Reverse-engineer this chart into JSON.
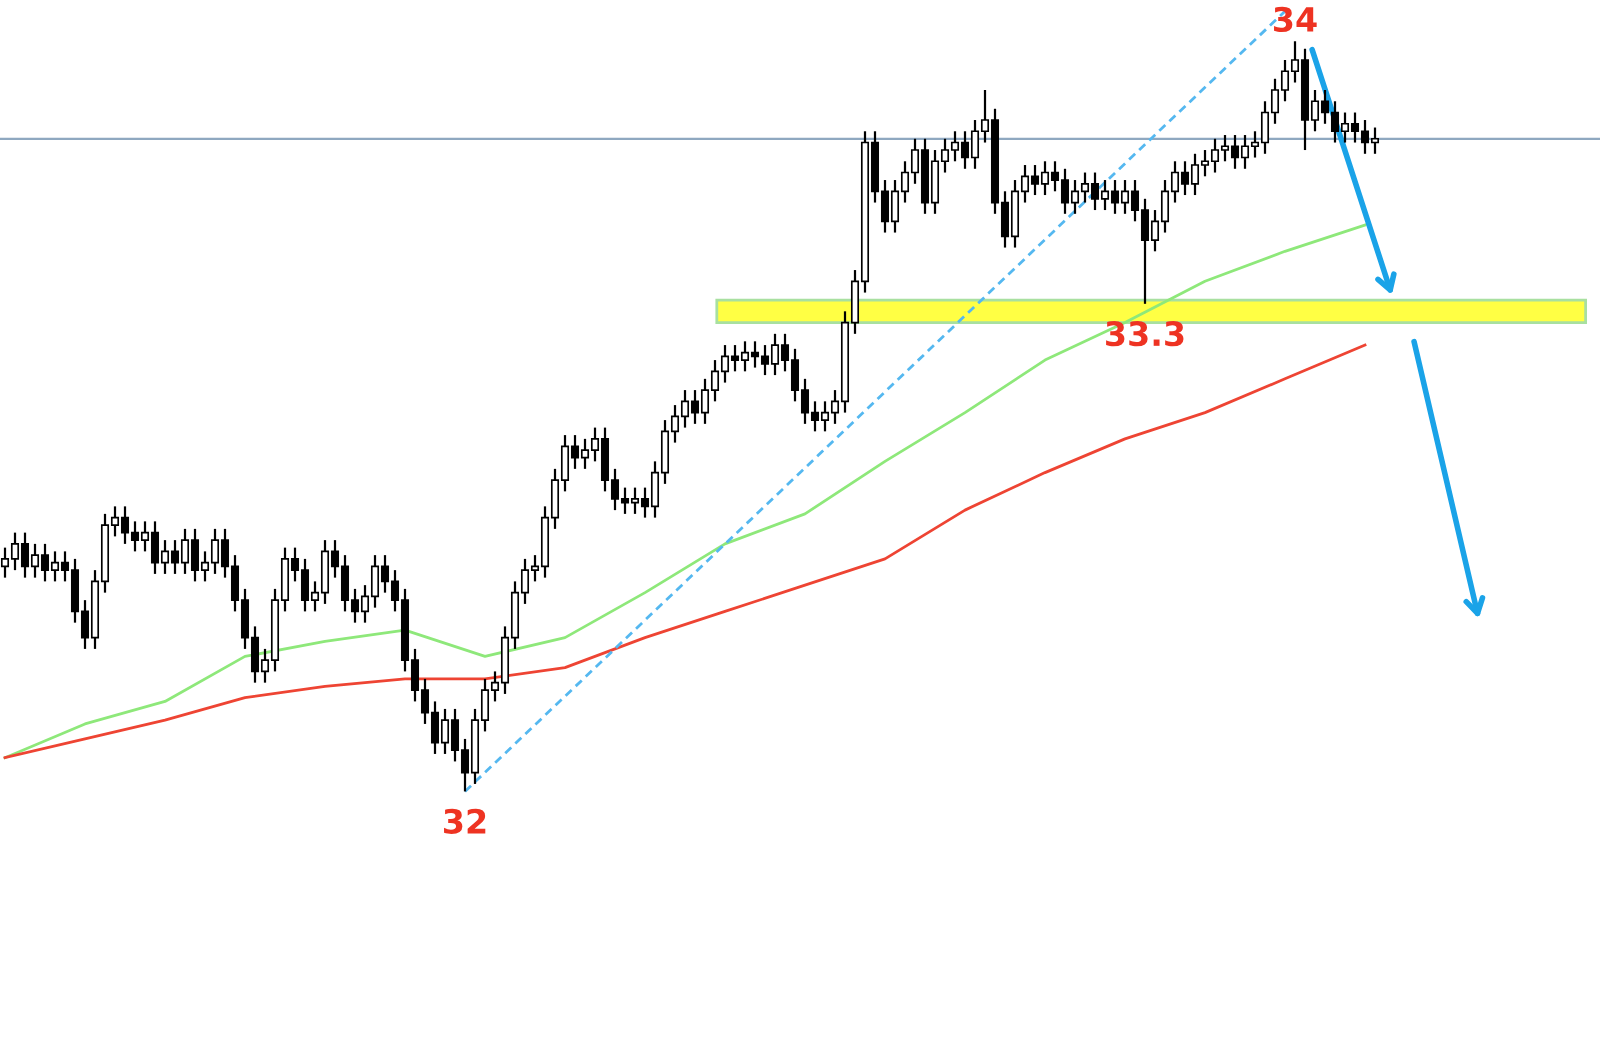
{
  "chart_data": {
    "type": "candlestick",
    "categories": [
      null,
      null,
      null,
      null,
      null,
      null,
      null,
      null,
      null,
      null,
      null,
      null,
      null,
      null,
      null,
      null,
      null,
      null,
      null,
      null,
      null,
      null,
      null,
      null,
      null,
      null,
      null,
      null,
      null,
      null,
      null,
      null,
      null,
      null,
      null,
      null,
      null,
      null,
      null,
      null,
      null,
      null,
      null,
      null,
      null,
      null,
      null,
      null,
      null,
      null,
      null,
      null,
      null,
      null,
      null,
      null,
      null,
      null,
      null,
      null,
      null,
      null,
      null,
      null,
      null,
      null,
      null,
      null,
      null,
      null,
      null,
      null,
      null,
      null,
      null,
      null,
      null,
      null,
      null,
      null,
      null,
      null,
      null,
      null,
      null,
      null,
      null,
      null,
      null,
      null,
      null,
      null,
      null,
      null,
      null,
      null,
      null,
      null,
      null,
      null,
      null,
      null,
      null,
      null,
      null,
      null,
      null,
      null,
      null,
      null,
      null,
      null,
      null,
      null,
      null,
      null,
      null,
      null,
      null,
      null,
      null,
      null,
      null,
      null,
      null,
      null,
      null,
      null,
      null,
      null,
      null,
      null,
      null,
      null,
      null,
      null,
      null,
      null,
      null,
      null,
      null,
      null,
      null,
      null,
      null,
      null,
      null,
      null,
      null,
      null,
      null,
      null,
      null,
      null,
      null,
      null,
      null,
      null,
      null,
      null
    ],
    "ohlc": [
      [
        32.6,
        32.65,
        32.57,
        32.62
      ],
      [
        32.62,
        32.69,
        32.59,
        32.66
      ],
      [
        32.66,
        32.69,
        32.57,
        32.6
      ],
      [
        32.6,
        32.66,
        32.57,
        32.63
      ],
      [
        32.63,
        32.66,
        32.56,
        32.59
      ],
      [
        32.59,
        32.64,
        32.56,
        32.61
      ],
      [
        32.61,
        32.64,
        32.56,
        32.59
      ],
      [
        32.59,
        32.62,
        32.45,
        32.48
      ],
      [
        32.48,
        32.51,
        32.38,
        32.41
      ],
      [
        32.41,
        32.59,
        32.38,
        32.56
      ],
      [
        32.56,
        32.74,
        32.53,
        32.71
      ],
      [
        32.71,
        32.76,
        32.68,
        32.73
      ],
      [
        32.73,
        32.76,
        32.66,
        32.69
      ],
      [
        32.69,
        32.72,
        32.64,
        32.67
      ],
      [
        32.67,
        32.72,
        32.64,
        32.69
      ],
      [
        32.69,
        32.72,
        32.58,
        32.61
      ],
      [
        32.61,
        32.67,
        32.58,
        32.64
      ],
      [
        32.64,
        32.67,
        32.58,
        32.61
      ],
      [
        32.61,
        32.7,
        32.58,
        32.67
      ],
      [
        32.67,
        32.7,
        32.56,
        32.59
      ],
      [
        32.59,
        32.64,
        32.56,
        32.61
      ],
      [
        32.61,
        32.7,
        32.58,
        32.67
      ],
      [
        32.67,
        32.7,
        32.57,
        32.6
      ],
      [
        32.6,
        32.63,
        32.48,
        32.51
      ],
      [
        32.51,
        32.54,
        32.38,
        32.41
      ],
      [
        32.41,
        32.44,
        32.29,
        32.32
      ],
      [
        32.32,
        32.38,
        32.29,
        32.35
      ],
      [
        32.35,
        32.54,
        32.32,
        32.51
      ],
      [
        32.51,
        32.65,
        32.48,
        32.62
      ],
      [
        32.62,
        32.65,
        32.56,
        32.59
      ],
      [
        32.59,
        32.62,
        32.48,
        32.51
      ],
      [
        32.51,
        32.56,
        32.48,
        32.53
      ],
      [
        32.53,
        32.67,
        32.5,
        32.64
      ],
      [
        32.64,
        32.67,
        32.57,
        32.6
      ],
      [
        32.6,
        32.63,
        32.48,
        32.51
      ],
      [
        32.51,
        32.54,
        32.45,
        32.48
      ],
      [
        32.48,
        32.55,
        32.45,
        32.52
      ],
      [
        32.52,
        32.63,
        32.49,
        32.6
      ],
      [
        32.6,
        32.63,
        32.53,
        32.56
      ],
      [
        32.56,
        32.59,
        32.48,
        32.51
      ],
      [
        32.51,
        32.54,
        32.32,
        32.35
      ],
      [
        32.35,
        32.38,
        32.24,
        32.27
      ],
      [
        32.27,
        32.3,
        32.18,
        32.21
      ],
      [
        32.21,
        32.24,
        32.1,
        32.13
      ],
      [
        32.13,
        32.22,
        32.1,
        32.19
      ],
      [
        32.19,
        32.22,
        32.08,
        32.11
      ],
      [
        32.11,
        32.14,
        32.0,
        32.05
      ],
      [
        32.05,
        32.22,
        32.02,
        32.19
      ],
      [
        32.19,
        32.3,
        32.16,
        32.27
      ],
      [
        32.27,
        32.32,
        32.24,
        32.29
      ],
      [
        32.29,
        32.44,
        32.26,
        32.41
      ],
      [
        32.41,
        32.56,
        32.38,
        32.53
      ],
      [
        32.53,
        32.62,
        32.5,
        32.59
      ],
      [
        32.59,
        32.63,
        32.56,
        32.6
      ],
      [
        32.6,
        32.76,
        32.57,
        32.73
      ],
      [
        32.73,
        32.86,
        32.7,
        32.83
      ],
      [
        32.83,
        32.95,
        32.8,
        32.92
      ],
      [
        32.92,
        32.95,
        32.86,
        32.89
      ],
      [
        32.89,
        32.94,
        32.86,
        32.91
      ],
      [
        32.91,
        32.97,
        32.88,
        32.94
      ],
      [
        32.94,
        32.97,
        32.8,
        32.83
      ],
      [
        32.83,
        32.86,
        32.75,
        32.78
      ],
      [
        32.78,
        32.81,
        32.74,
        32.77
      ],
      [
        32.77,
        32.81,
        32.74,
        32.78
      ],
      [
        32.78,
        32.81,
        32.73,
        32.76
      ],
      [
        32.76,
        32.88,
        32.73,
        32.85
      ],
      [
        32.85,
        32.99,
        32.82,
        32.96
      ],
      [
        32.96,
        33.03,
        32.93,
        33.0
      ],
      [
        33.0,
        33.07,
        32.97,
        33.04
      ],
      [
        33.04,
        33.07,
        32.98,
        33.01
      ],
      [
        33.01,
        33.1,
        32.98,
        33.07
      ],
      [
        33.07,
        33.15,
        33.04,
        33.12
      ],
      [
        33.12,
        33.19,
        33.09,
        33.16
      ],
      [
        33.16,
        33.19,
        33.12,
        33.15
      ],
      [
        33.15,
        33.2,
        33.12,
        33.17
      ],
      [
        33.17,
        33.2,
        33.13,
        33.16
      ],
      [
        33.16,
        33.19,
        33.11,
        33.14
      ],
      [
        33.14,
        33.22,
        33.11,
        33.19
      ],
      [
        33.19,
        33.22,
        33.12,
        33.15
      ],
      [
        33.15,
        33.18,
        33.04,
        33.07
      ],
      [
        33.07,
        33.1,
        32.98,
        33.01
      ],
      [
        33.01,
        33.04,
        32.96,
        32.99
      ],
      [
        32.99,
        33.04,
        32.96,
        33.01
      ],
      [
        33.01,
        33.07,
        32.98,
        33.04
      ],
      [
        33.04,
        33.28,
        33.01,
        33.25
      ],
      [
        33.25,
        33.39,
        33.22,
        33.36
      ],
      [
        33.36,
        33.76,
        33.33,
        33.73
      ],
      [
        33.73,
        33.76,
        33.57,
        33.6
      ],
      [
        33.6,
        33.63,
        33.49,
        33.52
      ],
      [
        33.52,
        33.63,
        33.49,
        33.6
      ],
      [
        33.6,
        33.68,
        33.57,
        33.65
      ],
      [
        33.65,
        33.74,
        33.62,
        33.71
      ],
      [
        33.71,
        33.74,
        33.54,
        33.57
      ],
      [
        33.57,
        33.71,
        33.54,
        33.68
      ],
      [
        33.68,
        33.74,
        33.65,
        33.71
      ],
      [
        33.71,
        33.76,
        33.68,
        33.73
      ],
      [
        33.73,
        33.76,
        33.66,
        33.69
      ],
      [
        33.69,
        33.79,
        33.66,
        33.76
      ],
      [
        33.76,
        33.87,
        33.73,
        33.79
      ],
      [
        33.79,
        33.82,
        33.54,
        33.57
      ],
      [
        33.57,
        33.6,
        33.45,
        33.48
      ],
      [
        33.48,
        33.63,
        33.45,
        33.6
      ],
      [
        33.6,
        33.67,
        33.57,
        33.64
      ],
      [
        33.64,
        33.67,
        33.59,
        33.62
      ],
      [
        33.62,
        33.68,
        33.59,
        33.65
      ],
      [
        33.65,
        33.68,
        33.6,
        33.63
      ],
      [
        33.63,
        33.66,
        33.54,
        33.57
      ],
      [
        33.57,
        33.63,
        33.54,
        33.6
      ],
      [
        33.6,
        33.65,
        33.57,
        33.62
      ],
      [
        33.62,
        33.65,
        33.55,
        33.58
      ],
      [
        33.58,
        33.63,
        33.55,
        33.6
      ],
      [
        33.6,
        33.63,
        33.54,
        33.57
      ],
      [
        33.57,
        33.63,
        33.54,
        33.6
      ],
      [
        33.6,
        33.63,
        33.52,
        33.55
      ],
      [
        33.55,
        33.58,
        33.3,
        33.47
      ],
      [
        33.47,
        33.55,
        33.44,
        33.52
      ],
      [
        33.52,
        33.63,
        33.49,
        33.6
      ],
      [
        33.6,
        33.68,
        33.57,
        33.65
      ],
      [
        33.65,
        33.68,
        33.59,
        33.62
      ],
      [
        33.62,
        33.7,
        33.59,
        33.67
      ],
      [
        33.67,
        33.71,
        33.64,
        33.68
      ],
      [
        33.68,
        33.74,
        33.65,
        33.71
      ],
      [
        33.71,
        33.75,
        33.68,
        33.72
      ],
      [
        33.72,
        33.75,
        33.66,
        33.69
      ],
      [
        33.69,
        33.75,
        33.66,
        33.72
      ],
      [
        33.72,
        33.76,
        33.69,
        33.73
      ],
      [
        33.73,
        33.84,
        33.7,
        33.81
      ],
      [
        33.81,
        33.9,
        33.78,
        33.87
      ],
      [
        33.87,
        33.95,
        33.84,
        33.92
      ],
      [
        33.92,
        34.0,
        33.89,
        33.95
      ],
      [
        33.95,
        33.98,
        33.71,
        33.79
      ],
      [
        33.79,
        33.87,
        33.76,
        33.84
      ],
      [
        33.84,
        33.87,
        33.78,
        33.81
      ],
      [
        33.81,
        33.84,
        33.73,
        33.76
      ],
      [
        33.76,
        33.81,
        33.73,
        33.78
      ],
      [
        33.78,
        33.81,
        33.73,
        33.76
      ],
      [
        33.76,
        33.79,
        33.7,
        33.73
      ],
      [
        33.73,
        33.77,
        33.7,
        33.74
      ],
      null,
      null,
      null,
      null,
      null,
      null,
      null,
      null,
      null,
      null,
      null,
      null,
      null,
      null,
      null,
      null,
      null,
      null,
      null,
      null,
      null,
      null
    ],
    "series": [
      {
        "type": "line",
        "color": "#8ee87a",
        "values": [
          32.09,
          null,
          null,
          null,
          null,
          null,
          null,
          null,
          32.18,
          null,
          null,
          null,
          null,
          null,
          null,
          null,
          32.24,
          null,
          null,
          null,
          null,
          null,
          null,
          null,
          32.36,
          null,
          null,
          null,
          null,
          null,
          null,
          null,
          32.4,
          null,
          null,
          null,
          null,
          null,
          null,
          null,
          32.43,
          null,
          null,
          null,
          null,
          null,
          null,
          null,
          32.36,
          null,
          null,
          null,
          null,
          null,
          null,
          null,
          32.41,
          null,
          null,
          null,
          null,
          null,
          null,
          null,
          32.53,
          null,
          null,
          null,
          null,
          null,
          null,
          null,
          32.66,
          null,
          null,
          null,
          null,
          null,
          null,
          null,
          32.74,
          null,
          null,
          null,
          null,
          null,
          null,
          null,
          32.88,
          null,
          null,
          null,
          null,
          null,
          null,
          null,
          33.01,
          null,
          null,
          null,
          null,
          null,
          null,
          null,
          33.15,
          null,
          null,
          null,
          null,
          null,
          null,
          null,
          33.25,
          null,
          null,
          null,
          null,
          null,
          null,
          null,
          33.36,
          null,
          null,
          null,
          null,
          null,
          null,
          null,
          33.44,
          null,
          null,
          null,
          null,
          null,
          null,
          null,
          33.51,
          null,
          null,
          null,
          null,
          null,
          null,
          null,
          null,
          null,
          null,
          null,
          null,
          null,
          null,
          null,
          null,
          null,
          null,
          null,
          null,
          null,
          null,
          null
        ]
      },
      {
        "type": "line",
        "color": "#ee4433",
        "values": [
          32.09,
          null,
          null,
          null,
          null,
          null,
          null,
          null,
          32.14,
          null,
          null,
          null,
          null,
          null,
          null,
          null,
          32.19,
          null,
          null,
          null,
          null,
          null,
          null,
          null,
          32.25,
          null,
          null,
          null,
          null,
          null,
          null,
          null,
          32.28,
          null,
          null,
          null,
          null,
          null,
          null,
          null,
          32.3,
          null,
          null,
          null,
          null,
          null,
          null,
          null,
          32.3,
          null,
          null,
          null,
          null,
          null,
          null,
          null,
          32.33,
          null,
          null,
          null,
          null,
          null,
          null,
          null,
          32.41,
          null,
          null,
          null,
          null,
          null,
          null,
          null,
          32.48,
          null,
          null,
          null,
          null,
          null,
          null,
          null,
          32.55,
          null,
          null,
          null,
          null,
          null,
          null,
          null,
          32.62,
          null,
          null,
          null,
          null,
          null,
          null,
          null,
          32.75,
          null,
          null,
          null,
          null,
          null,
          null,
          null,
          32.85,
          null,
          null,
          null,
          null,
          null,
          null,
          null,
          32.94,
          null,
          null,
          null,
          null,
          null,
          null,
          null,
          33.01,
          null,
          null,
          null,
          null,
          null,
          null,
          null,
          33.1,
          null,
          null,
          null,
          null,
          null,
          null,
          null,
          33.19,
          null,
          null,
          null,
          null,
          null,
          null,
          null,
          null,
          null,
          null,
          null,
          null,
          null,
          null,
          null,
          null,
          null,
          null,
          null,
          null,
          null,
          null,
          null
        ]
      },
      {
        "type": "line",
        "color": "#55b8f0",
        "line_style": "dashed",
        "values": [
          null,
          null,
          null,
          null,
          null,
          null,
          null,
          null,
          null,
          null,
          null,
          null,
          null,
          null,
          null,
          null,
          null,
          null,
          null,
          null,
          null,
          null,
          null,
          null,
          null,
          null,
          null,
          null,
          null,
          null,
          null,
          null,
          null,
          null,
          null,
          null,
          null,
          null,
          null,
          null,
          null,
          null,
          null,
          null,
          null,
          null,
          32.0,
          null,
          null,
          null,
          null,
          null,
          null,
          null,
          null,
          null,
          null,
          null,
          null,
          null,
          null,
          null,
          null,
          null,
          null,
          null,
          null,
          null,
          null,
          null,
          null,
          null,
          null,
          null,
          null,
          null,
          null,
          null,
          null,
          null,
          null,
          null,
          null,
          null,
          null,
          null,
          null,
          null,
          null,
          null,
          null,
          null,
          null,
          null,
          null,
          null,
          null,
          null,
          null,
          null,
          null,
          null,
          null,
          null,
          null,
          null,
          null,
          null,
          null,
          null,
          null,
          null,
          null,
          null,
          null,
          null,
          null,
          null,
          null,
          null,
          null,
          null,
          null,
          null,
          null,
          null,
          null,
          null,
          34.08,
          null,
          null,
          null,
          null,
          null,
          null,
          null,
          null,
          null,
          null,
          null,
          null,
          null,
          null,
          null,
          null,
          null,
          null,
          null,
          null,
          null,
          null,
          null,
          null,
          null,
          null,
          null,
          null,
          null,
          null,
          null
        ]
      }
    ],
    "ref_lines": [
      {
        "axis": "y",
        "value": 33.74,
        "color": "#8fa8c0"
      }
    ],
    "bands": [
      {
        "axis": "y",
        "from": 33.25,
        "to": 33.31,
        "color": "#ffff44"
      }
    ],
    "annotations": [
      {
        "text": "34",
        "y": 34.0
      },
      {
        "text": "33.3",
        "y": 33.3
      },
      {
        "text": "32",
        "y": 32.0
      }
    ],
    "ylim": [
      31.3,
      34.11
    ]
  }
}
